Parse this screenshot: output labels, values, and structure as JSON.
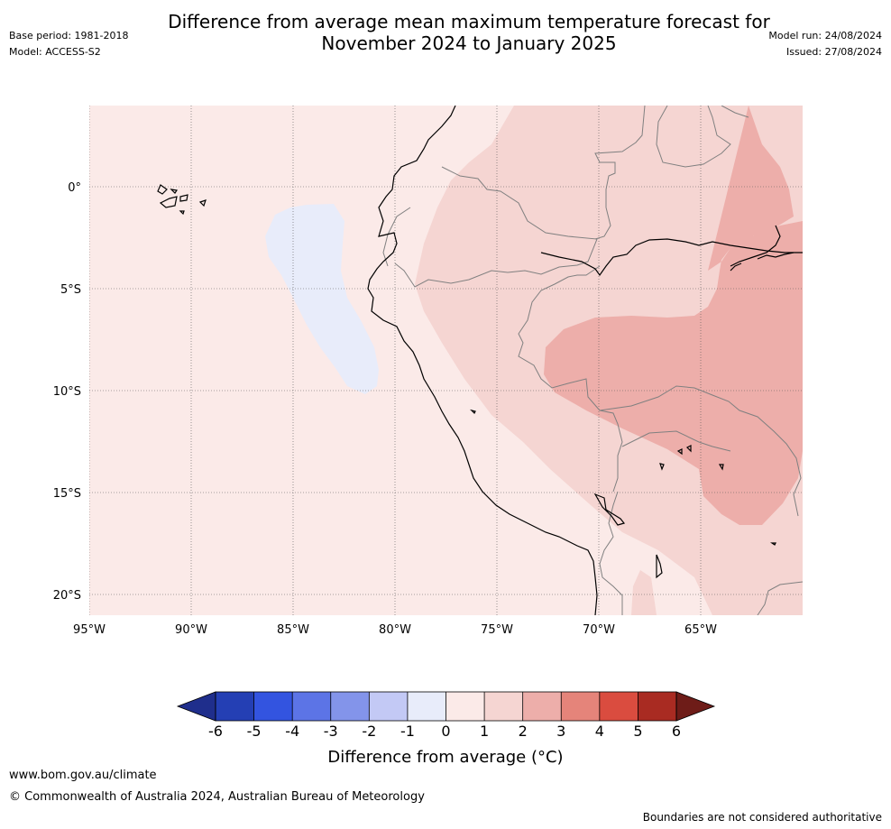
{
  "header": {
    "title_line1": "Difference from average mean maximum temperature forecast for",
    "title_line2": "November 2024 to January 2025",
    "base_period": "Base period: 1981-2018",
    "model": "Model: ACCESS-S2",
    "model_run": "Model run: 24/08/2024",
    "issued": "Issued: 27/08/2024"
  },
  "map": {
    "lon_labels": [
      "95°W",
      "90°W",
      "85°W",
      "80°W",
      "75°W",
      "70°W",
      "65°W"
    ],
    "lat_labels": [
      "0°",
      "5°S",
      "10°S",
      "15°S",
      "20°S"
    ],
    "colors": {
      "ocean_background": "#fbeae8",
      "neg1_to_0": "#e8ecfa",
      "0_to_1": "#fbeae8",
      "1_to_2": "#f5d5d2",
      "2_to_3": "#edaeaa",
      "coast": "#000000",
      "borders": "#808080",
      "gridlines": "#555555"
    }
  },
  "colorbar": {
    "ticks": [
      "-6",
      "-5",
      "-4",
      "-3",
      "-2",
      "-1",
      "0",
      "1",
      "2",
      "3",
      "4",
      "5",
      "6"
    ],
    "colors": [
      "#1f2e8c",
      "#243fb4",
      "#3354e0",
      "#5c74e6",
      "#8394ea",
      "#c3c9f5",
      "#e8ecfa",
      "#fbeae8",
      "#f5d5d2",
      "#edaeaa",
      "#e5847a",
      "#da4c3f",
      "#a92b22",
      "#6e1c18"
    ],
    "label": "Difference from average (°C)"
  },
  "footer": {
    "website": "www.bom.gov.au/climate",
    "copyright": "© Commonwealth of Australia 2024, Australian Bureau of Meteorology",
    "disclaimer": "Boundaries are not considered authoritative"
  }
}
